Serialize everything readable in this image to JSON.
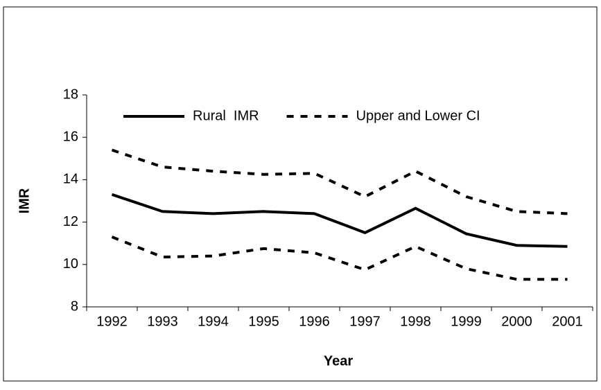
{
  "chart_data": {
    "type": "line",
    "x_label": "Year",
    "y_label": "IMR",
    "categories": [
      "1992",
      "1993",
      "1994",
      "1995",
      "1996",
      "1997",
      "1998",
      "1999",
      "2000",
      "2001"
    ],
    "series": [
      {
        "name": "Rural  IMR",
        "color": "#000000",
        "dash": false,
        "values": [
          13.3,
          12.5,
          12.4,
          12.5,
          12.4,
          11.5,
          12.65,
          11.45,
          10.9,
          10.85
        ]
      },
      {
        "name": "Upper and Lower CI",
        "color": "#000000",
        "dash": true,
        "values": [
          15.4,
          14.6,
          14.4,
          14.25,
          14.3,
          13.2,
          14.4,
          13.2,
          12.5,
          12.4
        ]
      },
      {
        "color": "#000000",
        "dash": true,
        "values": [
          11.3,
          10.35,
          10.4,
          10.75,
          10.55,
          9.75,
          10.85,
          9.8,
          9.3,
          9.3
        ]
      }
    ],
    "ylim": [
      8,
      18
    ],
    "yticks": [
      8,
      10,
      12,
      14,
      16,
      18
    ],
    "grid": false,
    "legend": "top"
  }
}
